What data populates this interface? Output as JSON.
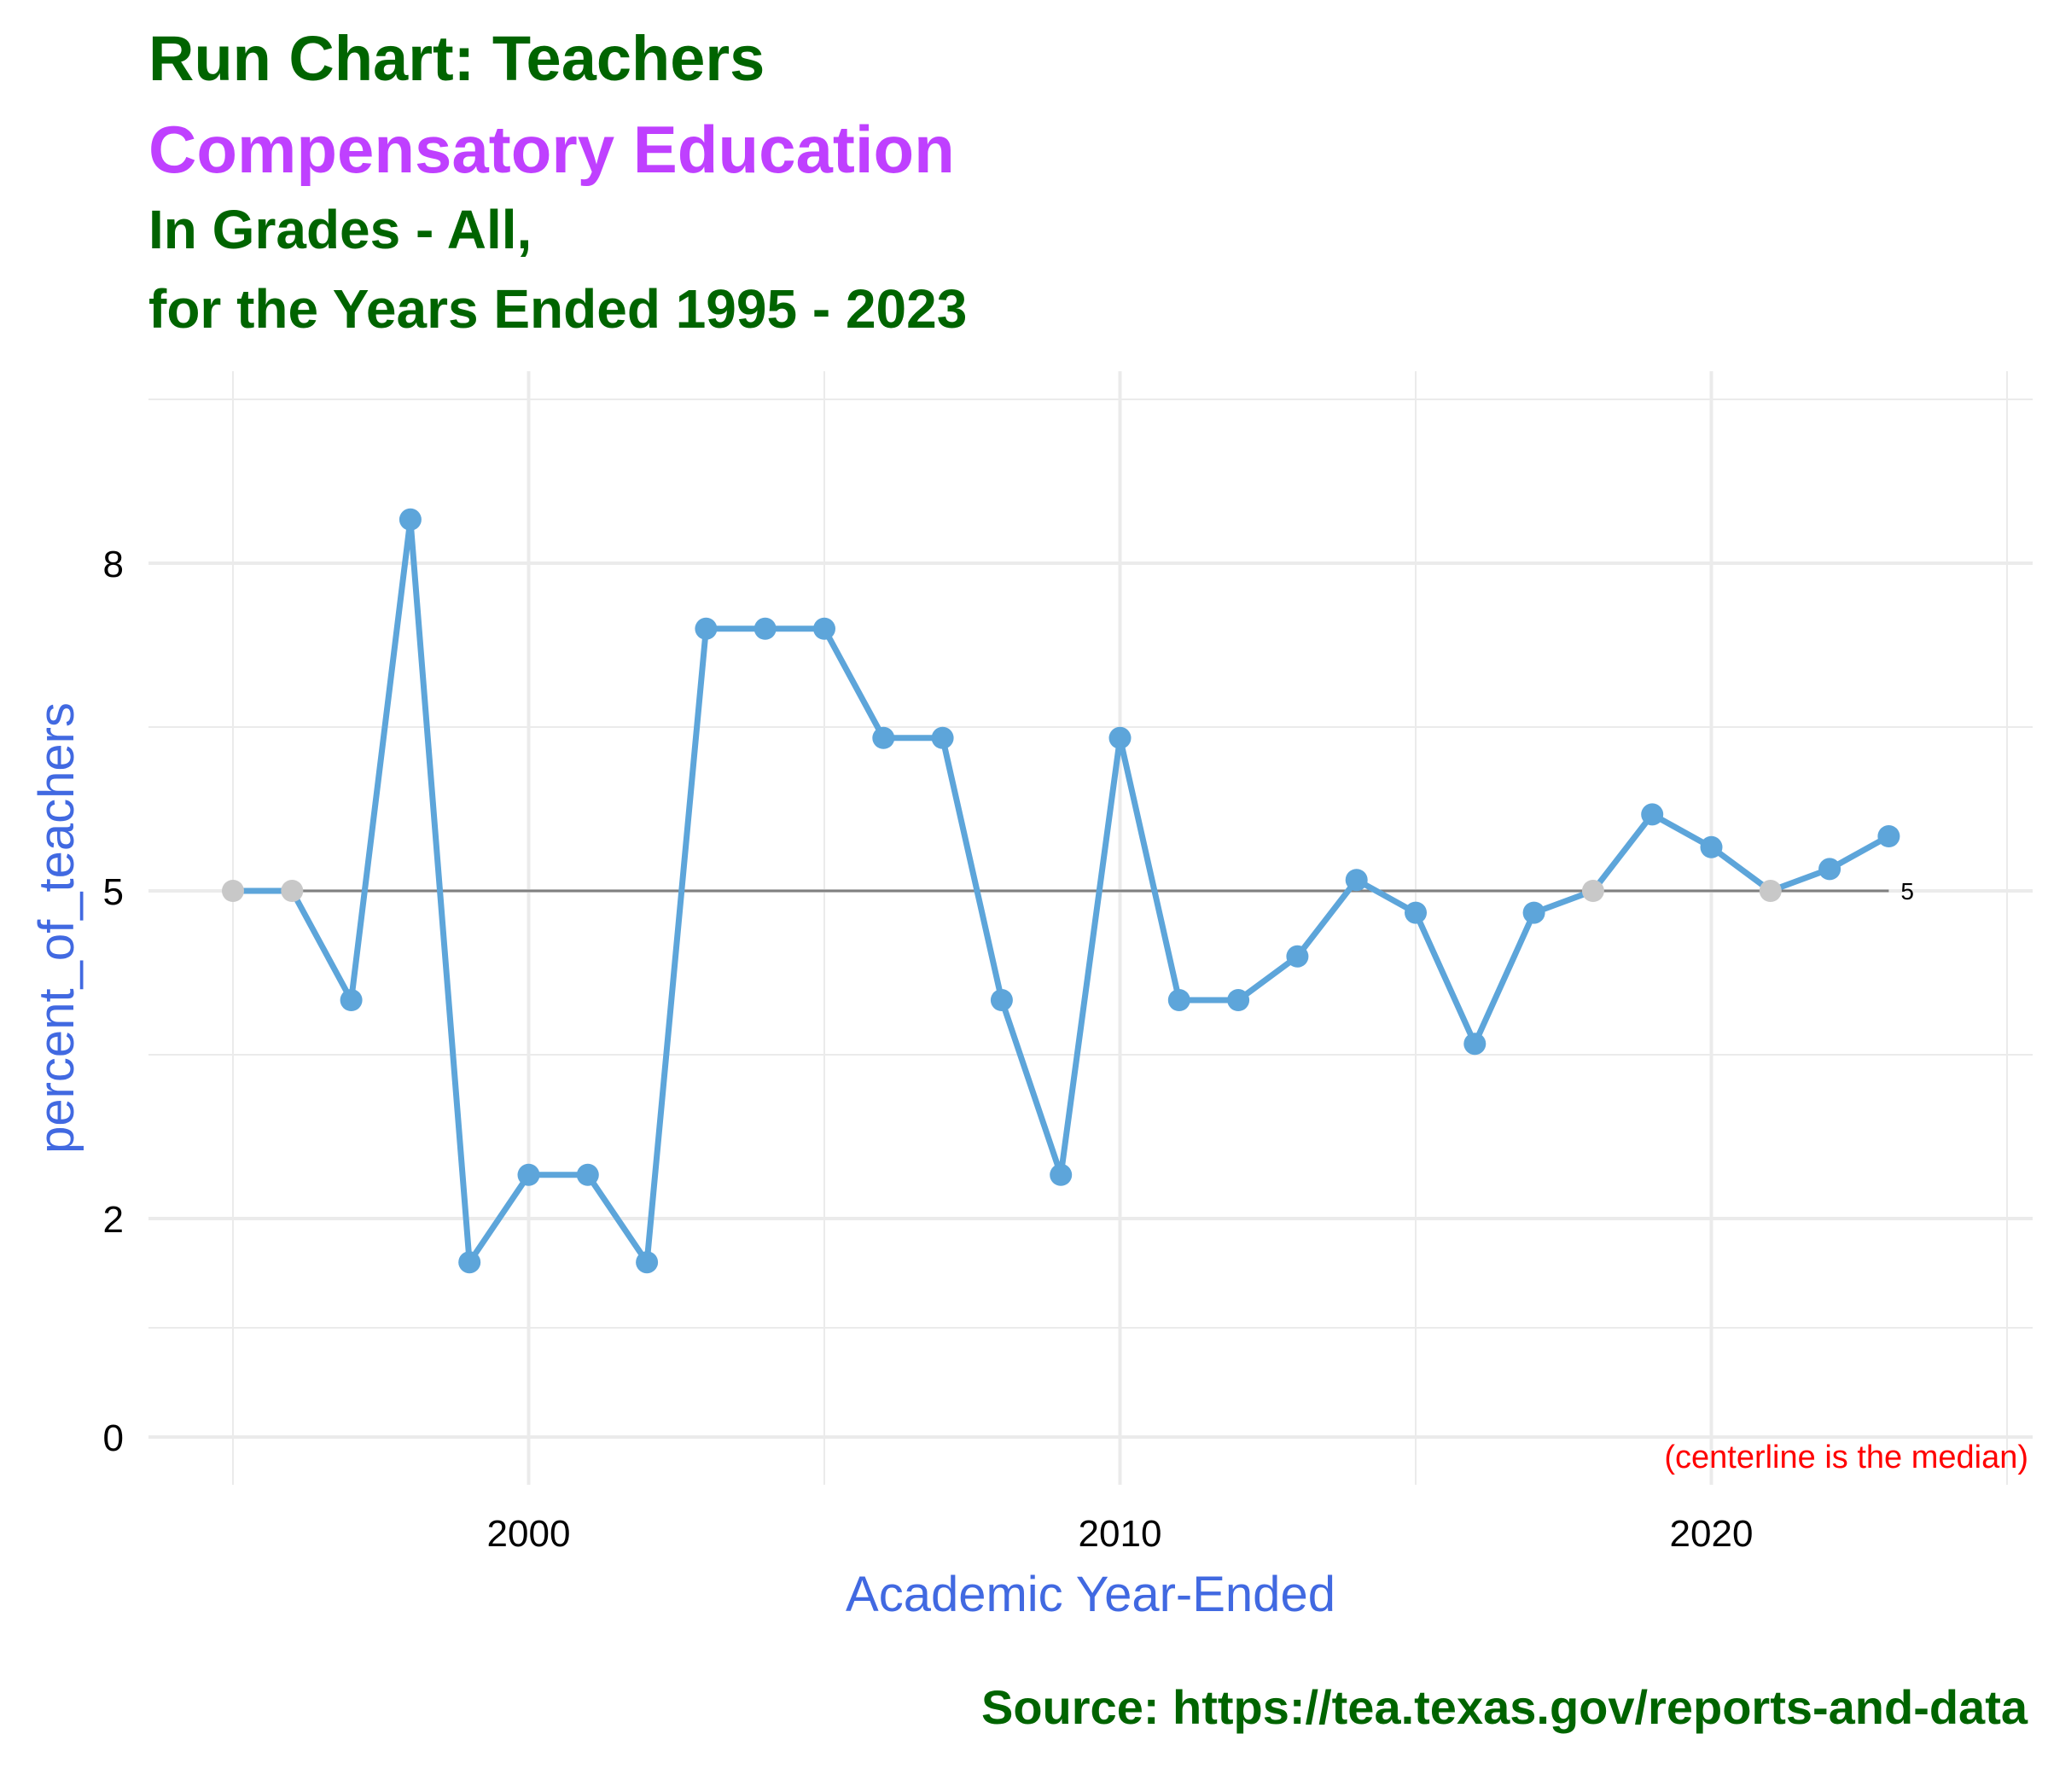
{
  "header": {
    "title": "Run Chart: Teachers",
    "subtitle": "Compensatory Education",
    "line2": "In Grades - All,",
    "line3": "for the Years Ended 1995 - 2023"
  },
  "caption": "Source:  https://tea.texas.gov/reports-and-data",
  "colors": {
    "title": "#006400",
    "subtitle": "#BF40FF",
    "axis_title": "#4169E1",
    "line": "#5DA5DA",
    "point_on_median": "#C8C8C8",
    "median_line": "#808080",
    "note": "#FF0000",
    "grid": "#EBEBEB"
  },
  "chart_data": {
    "type": "line",
    "xlabel": "Academic Year-Ended",
    "ylabel": "percent_of_teachers",
    "xlim": [
      1993.6,
      2024.4
    ],
    "ylim": [
      0,
      8.8
    ],
    "x_ticks": [
      2000,
      2010,
      2020
    ],
    "y_ticks": [
      0,
      2,
      5,
      8
    ],
    "y_tick_labels": [
      "0",
      "2",
      "5",
      "8"
    ],
    "grid": true,
    "median": 5,
    "median_label": "5",
    "note": "(centerline is the median)",
    "series": [
      {
        "x": [
          1995,
          1996,
          1997,
          1998,
          1999,
          2000,
          2001,
          2002,
          2003,
          2004,
          2005,
          2006,
          2007,
          2008,
          2009,
          2010,
          2011,
          2012,
          2013,
          2014,
          2015,
          2016,
          2017,
          2018,
          2019,
          2020,
          2021,
          2022,
          2023
        ],
        "y": [
          5.0,
          5.0,
          4.0,
          8.4,
          1.6,
          2.4,
          2.4,
          1.6,
          7.4,
          7.4,
          7.4,
          6.4,
          6.4,
          4.0,
          2.4,
          6.4,
          4.0,
          4.0,
          4.4,
          5.1,
          4.8,
          3.6,
          4.8,
          5.0,
          5.7,
          5.4,
          5.0,
          5.2,
          5.5
        ]
      }
    ]
  }
}
